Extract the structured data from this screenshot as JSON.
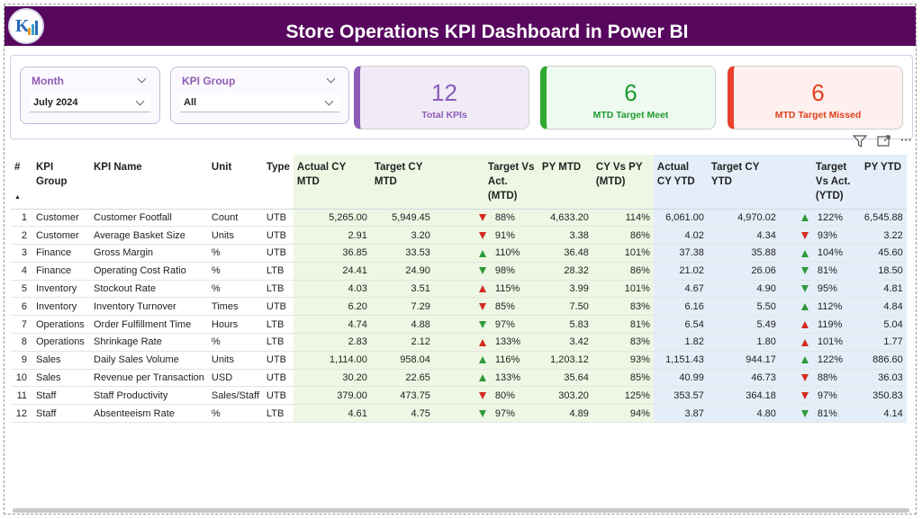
{
  "header": {
    "title": "Store Operations KPI Dashboard in Power BI"
  },
  "slicers": [
    {
      "label": "Month",
      "value": "July 2024"
    },
    {
      "label": "KPI Group",
      "value": "All"
    }
  ],
  "cards": [
    {
      "value": 12,
      "label": "Total KPIs",
      "color": "#8b5cb8",
      "background": "#f1ebf7",
      "text_color": "#8b5cb8"
    },
    {
      "value": 6,
      "label": "MTD Target Meet",
      "color": "#2eaa2e",
      "background": "#eefaf0",
      "text_color": "#1e9a2e"
    },
    {
      "value": 6,
      "label": "MTD Target Missed",
      "color": "#e8402a",
      "background": "#fdf0ee",
      "text_color": "#e0401e"
    }
  ],
  "table": {
    "columns": [
      "#",
      "KPI Group",
      "KPI Name",
      "Unit",
      "Type",
      "Actual CY MTD",
      "Target CY MTD",
      "Target Vs Act. (MTD)",
      "PY MTD",
      "CY Vs PY (MTD)",
      "Actual CY YTD",
      "Target CY YTD",
      "Target Vs Act. (YTD)",
      "PY YTD"
    ],
    "rows": [
      [
        "1",
        "Customer",
        "Customer Footfall",
        "Count",
        "UTB",
        "5,265.00",
        "5,949.45",
        "88%",
        "4,633.20",
        "114%",
        "6,061.00",
        "4,970.02",
        "122%",
        "6,545.88"
      ],
      [
        "2",
        "Customer",
        "Average Basket Size",
        "Units",
        "UTB",
        "2.91",
        "3.20",
        "91%",
        "3.38",
        "86%",
        "4.02",
        "4.34",
        "93%",
        "3.22"
      ],
      [
        "3",
        "Finance",
        "Gross Margin",
        "%",
        "UTB",
        "36.85",
        "33.53",
        "110%",
        "36.48",
        "101%",
        "37.38",
        "35.88",
        "104%",
        "45.60"
      ],
      [
        "4",
        "Finance",
        "Operating Cost Ratio",
        "%",
        "LTB",
        "24.41",
        "24.90",
        "98%",
        "28.32",
        "86%",
        "21.02",
        "26.06",
        "81%",
        "18.50"
      ],
      [
        "5",
        "Inventory",
        "Stockout Rate",
        "%",
        "LTB",
        "4.03",
        "3.51",
        "115%",
        "3.99",
        "101%",
        "4.67",
        "4.90",
        "95%",
        "4.81"
      ],
      [
        "6",
        "Inventory",
        "Inventory Turnover",
        "Times",
        "UTB",
        "6.20",
        "7.29",
        "85%",
        "7.50",
        "83%",
        "6.16",
        "5.50",
        "112%",
        "4.84"
      ],
      [
        "7",
        "Operations",
        "Order Fulfillment Time",
        "Hours",
        "LTB",
        "4.74",
        "4.88",
        "97%",
        "5.83",
        "81%",
        "6.54",
        "5.49",
        "119%",
        "5.04"
      ],
      [
        "8",
        "Operations",
        "Shrinkage Rate",
        "%",
        "LTB",
        "2.83",
        "2.12",
        "133%",
        "3.42",
        "83%",
        "1.82",
        "1.80",
        "101%",
        "1.77"
      ],
      [
        "9",
        "Sales",
        "Daily Sales Volume",
        "Units",
        "UTB",
        "1,114.00",
        "958.04",
        "116%",
        "1,203.12",
        "93%",
        "1,151.43",
        "944.17",
        "122%",
        "886.60"
      ],
      [
        "10",
        "Sales",
        "Revenue per Transaction",
        "USD",
        "UTB",
        "30.20",
        "22.65",
        "133%",
        "35.64",
        "85%",
        "40.99",
        "46.73",
        "88%",
        "36.03"
      ],
      [
        "11",
        "Staff",
        "Staff Productivity",
        "Sales/Staff",
        "UTB",
        "379.00",
        "473.75",
        "80%",
        "303.20",
        "125%",
        "353.57",
        "364.18",
        "97%",
        "350.83"
      ],
      [
        "12",
        "Staff",
        "Absenteeism Rate",
        "%",
        "LTB",
        "4.61",
        "4.75",
        "97%",
        "4.89",
        "94%",
        "3.87",
        "4.80",
        "81%",
        "4.14"
      ]
    ],
    "icons": [
      [
        "down-red",
        "up-green"
      ],
      [
        "down-red",
        "down-red"
      ],
      [
        "up-green",
        "up-green"
      ],
      [
        "down-green",
        "down-green"
      ],
      [
        "up-red",
        "down-green"
      ],
      [
        "down-red",
        "up-green"
      ],
      [
        "down-green",
        "up-red"
      ],
      [
        "up-red",
        "up-red"
      ],
      [
        "up-green",
        "up-green"
      ],
      [
        "up-green",
        "down-red"
      ],
      [
        "down-red",
        "down-red"
      ],
      [
        "down-green",
        "down-green"
      ]
    ]
  }
}
